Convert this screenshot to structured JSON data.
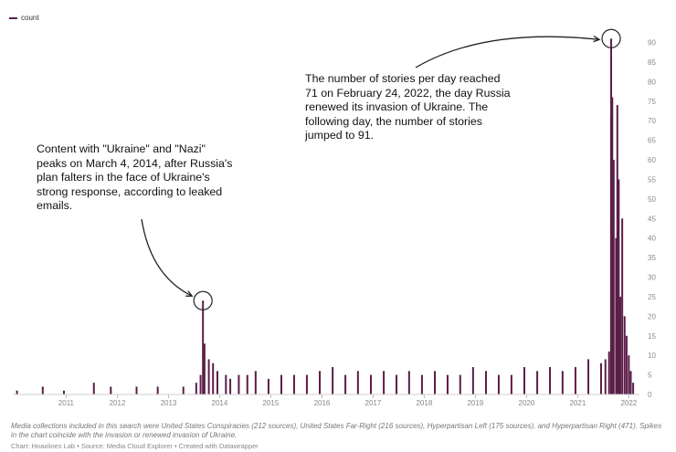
{
  "chart_data": {
    "type": "bar",
    "legend": {
      "entries": [
        "count"
      ],
      "placement": "top-left"
    },
    "series": [
      {
        "name": "count",
        "color": "#5a1e47",
        "x": [
          "2010-07",
          "2011-01",
          "2011-06",
          "2012-01",
          "2012-05",
          "2012-11",
          "2013-04",
          "2013-10",
          "2014-01",
          "2014-02",
          "2014-03-04",
          "2014-03-15",
          "2014-04",
          "2014-05",
          "2014-06",
          "2014-08",
          "2014-09",
          "2014-11",
          "2015-01",
          "2015-03",
          "2015-06",
          "2015-09",
          "2015-12",
          "2016-03",
          "2016-06",
          "2016-09",
          "2016-12",
          "2017-03",
          "2017-06",
          "2017-09",
          "2017-12",
          "2018-03",
          "2018-06",
          "2018-09",
          "2018-12",
          "2019-03",
          "2019-06",
          "2019-09",
          "2019-12",
          "2020-03",
          "2020-06",
          "2020-09",
          "2020-12",
          "2021-03",
          "2021-06",
          "2021-09",
          "2021-12",
          "2022-01",
          "2022-02-10",
          "2022-02-24",
          "2022-02-25",
          "2022-03-05",
          "2022-03-15",
          "2022-04-01",
          "2022-04-10",
          "2022-04-20",
          "2022-05-01",
          "2022-05-15",
          "2022-06-01",
          "2022-06-15",
          "2022-07-01",
          "2022-07-15",
          "2022-08-01"
        ],
        "values": [
          1,
          2,
          1,
          3,
          2,
          2,
          2,
          2,
          3,
          5,
          24,
          13,
          9,
          8,
          6,
          5,
          4,
          5,
          5,
          6,
          4,
          5,
          5,
          5,
          6,
          7,
          5,
          6,
          5,
          6,
          5,
          6,
          5,
          6,
          5,
          5,
          7,
          6,
          5,
          5,
          7,
          6,
          7,
          6,
          7,
          9,
          8,
          9,
          11,
          71,
          91,
          76,
          60,
          40,
          74,
          55,
          25,
          45,
          20,
          15,
          10,
          6,
          3
        ]
      }
    ],
    "x_range": [
      "2010-06",
      "2022-09"
    ],
    "y_range": [
      0,
      92
    ],
    "y_ticks": [
      0,
      5,
      10,
      15,
      20,
      25,
      30,
      35,
      40,
      45,
      50,
      55,
      60,
      65,
      70,
      75,
      80,
      85,
      90
    ],
    "x_tick_labels": [
      "2011",
      "2012",
      "2013",
      "2014",
      "2015",
      "2016",
      "2017",
      "2018",
      "2019",
      "2020",
      "2021",
      "2022"
    ],
    "grid": false,
    "y_axis_side": "right",
    "annotations": [
      {
        "text": "Content with \"Ukraine\" and \"Nazi\" peaks on March 4, 2014, after Russia's plan falters in the face of Ukraine's strong response, according to leaked emails.",
        "x": "2014-03-04",
        "y": 24
      },
      {
        "text": "The number of stories per day reached 71 on February 24, 2022, the day Russia renewed its invasion of Ukraine. The following day, the number of stories jumped to 91.",
        "x": "2022-02-25",
        "y": 91
      }
    ]
  },
  "footer": {
    "note": "Media collections included in this search were United States Conspiracies (212 sources), United States Far-Right (216 sources), Hyperpartisan Left (175 sources), and Hyperpartisan Right (471). Spikes in the chart coincide with the invasion or renewed invasion of Ukraine.",
    "credit": "Chart: Hoaxlines Lab • Source: Media Cloud Explorer • Created with Datawrapper"
  }
}
